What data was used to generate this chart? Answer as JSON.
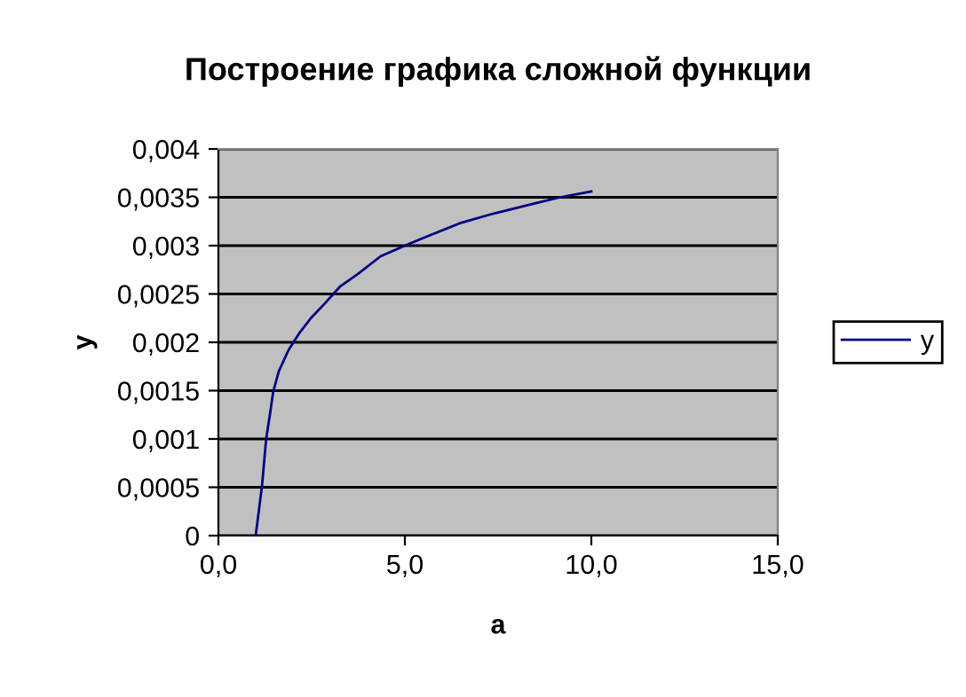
{
  "chart_data": {
    "type": "line",
    "title": "Построение графика сложной функции",
    "xlabel": "a",
    "ylabel": "y",
    "xlim": [
      0,
      15
    ],
    "xticks": [
      {
        "value": 0,
        "label": "0,0"
      },
      {
        "value": 5,
        "label": "5,0"
      },
      {
        "value": 10,
        "label": "10,0"
      },
      {
        "value": 15,
        "label": "15,0"
      }
    ],
    "ylim": [
      0,
      0.004
    ],
    "yticks": [
      0,
      {
        "value": 0.0005,
        "label": "0,0005"
      },
      {
        "value": 0.001,
        "label": "0,001"
      },
      {
        "value": 0.0015,
        "label": "0,0015"
      },
      {
        "value": 0.002,
        "label": "0,002"
      },
      {
        "value": 0.0025,
        "label": "0,0025"
      },
      {
        "value": 0.003,
        "label": "0,003"
      },
      {
        "value": 0.0035,
        "label": "0,0035"
      },
      {
        "value": 0.004,
        "label": "0,004"
      }
    ],
    "grid": "y",
    "legend": "right",
    "marker": "none",
    "line_style": "solid",
    "series": [
      {
        "name": "y",
        "color": "#000080",
        "x": [
          1.0,
          1.17,
          1.28,
          1.38,
          1.47,
          1.62,
          1.88,
          2.18,
          2.48,
          2.85,
          3.27,
          3.75,
          4.35,
          5.0,
          5.56,
          6.46,
          7.36,
          8.41,
          9.16,
          10.0
        ],
        "values": [
          0,
          0.00052,
          0.001,
          0.00125,
          0.00149,
          0.0017,
          0.00192,
          0.0021,
          0.00225,
          0.0024,
          0.00258,
          0.00271,
          0.00289,
          0.003,
          0.00309,
          0.00323,
          0.00333,
          0.00343,
          0.0035,
          0.00356
        ]
      }
    ]
  }
}
